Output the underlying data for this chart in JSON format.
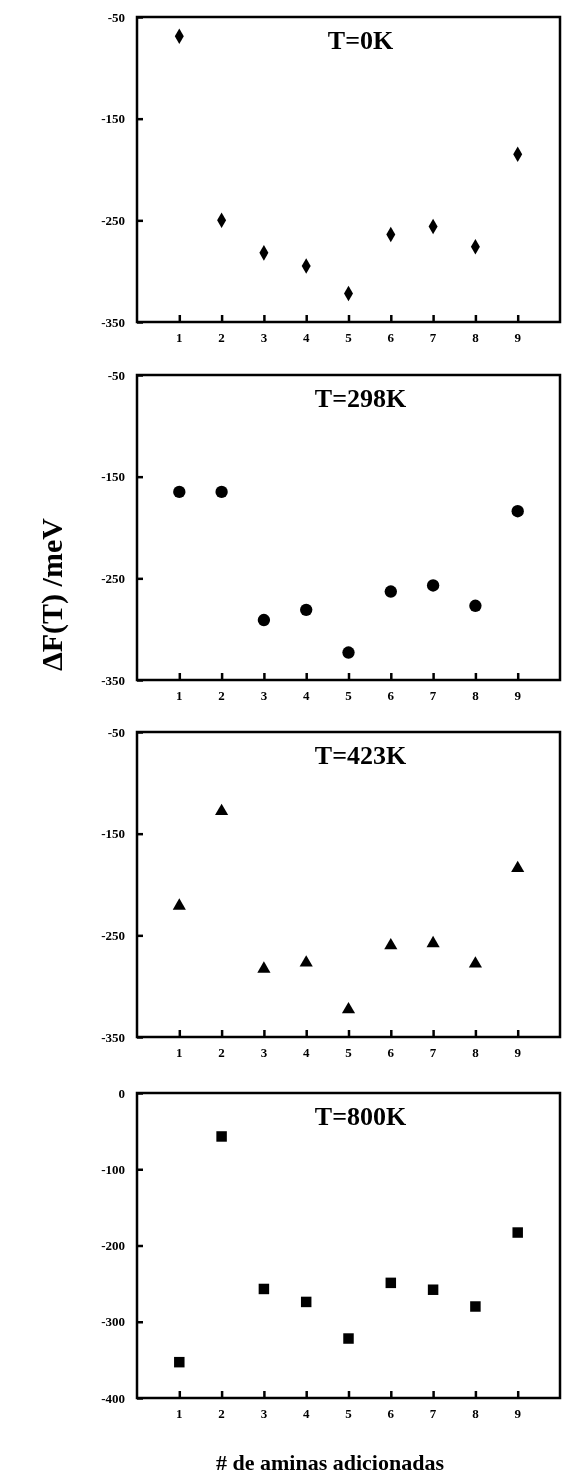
{
  "chart_data": [
    {
      "type": "scatter",
      "title": "T=0K",
      "categories": [
        "1",
        "2",
        "3",
        "4",
        "5",
        "6",
        "7",
        "8",
        "9"
      ],
      "marker": "diamond",
      "ylim": [
        -350,
        -50
      ],
      "yticks": [
        -350,
        -250,
        -150,
        -50
      ],
      "grid": false,
      "series": [
        {
          "color": "#000000",
          "values": [
            -69,
            -250,
            -282,
            -295,
            -322,
            -264,
            -256,
            -276,
            -185
          ]
        }
      ]
    },
    {
      "type": "scatter",
      "title": "T=298K",
      "ylabel": "ΔF(T)  /meV",
      "categories": [
        "1",
        "2",
        "3",
        "4",
        "5",
        "6",
        "7",
        "8",
        "9"
      ],
      "marker": "circle",
      "ylim": [
        -350,
        -50
      ],
      "yticks": [
        -350,
        -250,
        -150,
        -50
      ],
      "grid": false,
      "series": [
        {
          "color": "#000000",
          "values": [
            -165,
            -165,
            -291,
            -281,
            -323,
            -263,
            -257,
            -277,
            -184
          ]
        }
      ]
    },
    {
      "type": "scatter",
      "title": "T=423K",
      "categories": [
        "1",
        "2",
        "3",
        "4",
        "5",
        "6",
        "7",
        "8",
        "9"
      ],
      "marker": "triangle",
      "ylim": [
        -350,
        -50
      ],
      "yticks": [
        -350,
        -250,
        -150,
        -50
      ],
      "grid": false,
      "series": [
        {
          "color": "#000000",
          "values": [
            -221,
            -128,
            -283,
            -277,
            -323,
            -260,
            -258,
            -278,
            -184
          ]
        }
      ]
    },
    {
      "type": "scatter",
      "title": "T=800K",
      "xlabel": "# de aminas adicionadas",
      "categories": [
        "1",
        "2",
        "3",
        "4",
        "5",
        "6",
        "7",
        "8",
        "9"
      ],
      "marker": "square",
      "ylim": [
        -400,
        0
      ],
      "yticks": [
        -400,
        -300,
        -200,
        -100,
        0
      ],
      "grid": false,
      "series": [
        {
          "color": "#000000",
          "values": [
            -353,
            -57,
            -257,
            -274,
            -322,
            -249,
            -258,
            -280,
            -183
          ]
        }
      ]
    }
  ]
}
